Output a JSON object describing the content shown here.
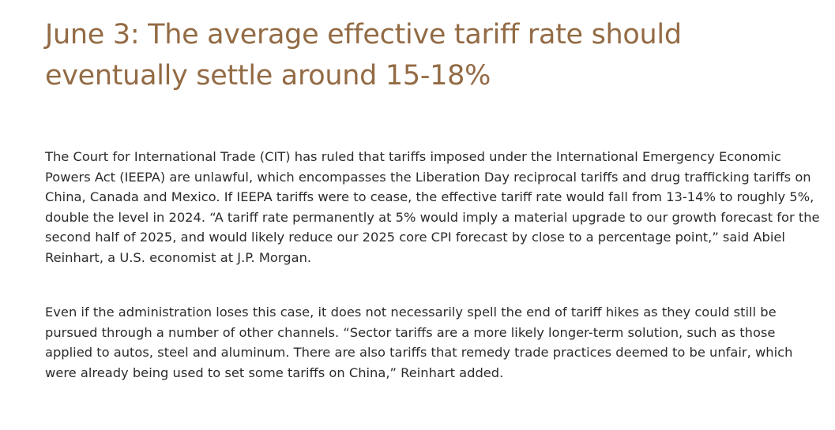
{
  "article": {
    "headline": "June 3: The average effective tariff rate should eventually settle around 15-18%",
    "paragraphs": [
      "The Court for International Trade (CIT) has ruled that tariffs imposed under the International Emergency Economic Powers Act (IEEPA) are unlawful, which encompasses the Liberation Day reciprocal tariffs and drug trafficking tariffs on China, Canada and Mexico. If IEEPA tariffs were to cease, the effective tariff rate would fall from 13-14% to roughly 5%, double the level in 2024. “A tariff rate permanently at 5% would imply a material upgrade to our growth forecast for the second half of 2025, and would likely reduce our 2025 core CPI forecast by close to a percentage point,” said Abiel Reinhart, a U.S. economist at J.P. Morgan.",
      "Even if the administration loses this case, it does not necessarily spell the end of tariff hikes as they could still be pursued through a number of other channels. “Sector tariffs are a more likely longer-term solution, such as those applied to autos, steel and aluminum. There are also tariffs that remedy trade practices deemed to be unfair, which were already being used to set some tariffs on China,” Reinhart added."
    ]
  },
  "colors": {
    "headline": "#936b45",
    "body_text": "#2b2b2b",
    "background": "#ffffff"
  }
}
